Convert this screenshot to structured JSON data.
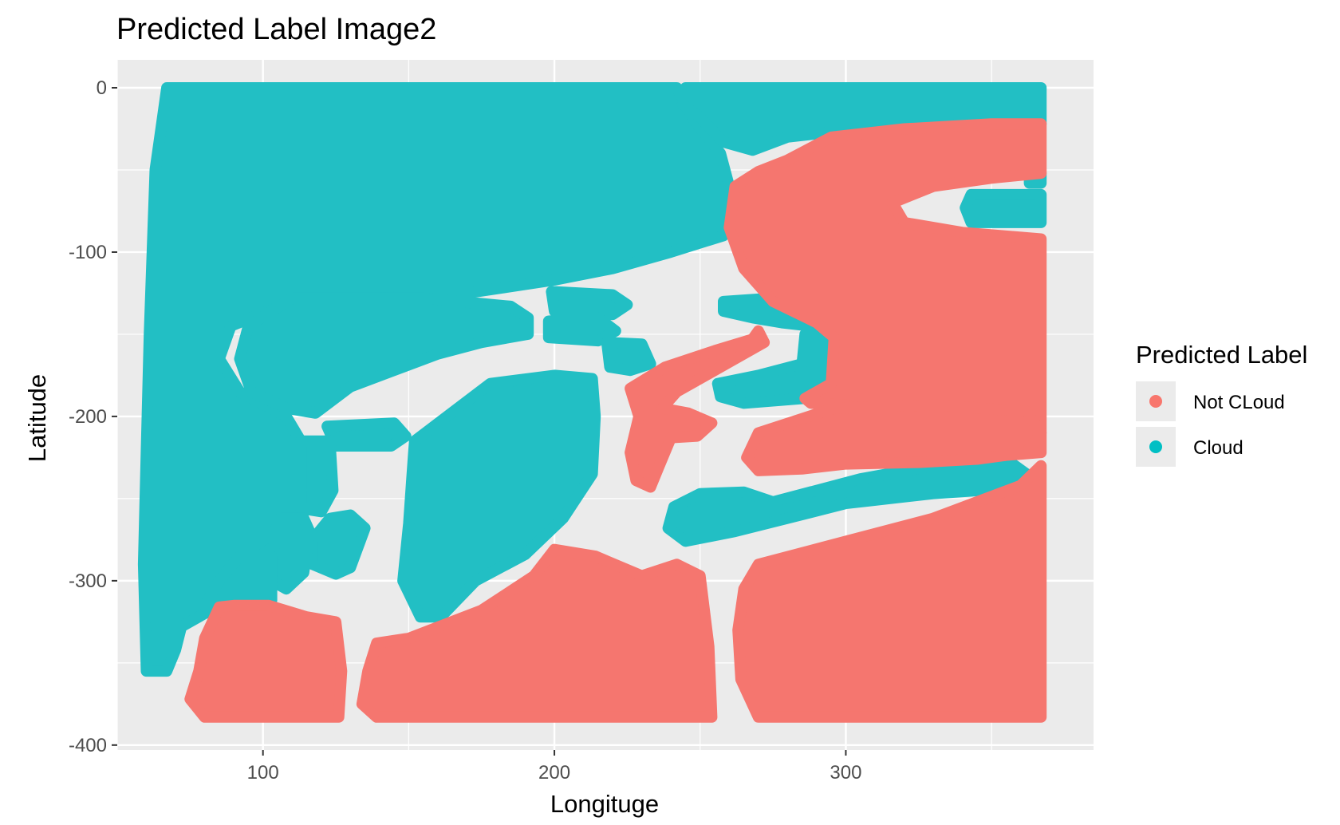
{
  "chart_data": {
    "type": "scatter",
    "title": "Predicted Label Image2",
    "xlabel": "Longituge",
    "ylabel": "Latitude",
    "xlim": [
      50,
      385
    ],
    "ylim": [
      -403,
      17
    ],
    "x_ticks": [
      100,
      200,
      300
    ],
    "y_ticks": [
      0,
      -100,
      -200,
      -300,
      -400
    ],
    "grid": true,
    "legend": {
      "title": "Predicted Label",
      "position": "right",
      "entries": [
        {
          "label": "Not CLoud",
          "color": "#F8766D"
        },
        {
          "label": "Cloud",
          "color": "#00BFC4"
        }
      ]
    },
    "series": [
      {
        "name": "Cloud",
        "color": "#22BFC4",
        "regions": [
          [
            [
              67,
              0
            ],
            [
              242,
              0
            ],
            [
              248,
              -20
            ],
            [
              257,
              -40
            ],
            [
              260,
              -60
            ],
            [
              260,
              -75
            ],
            [
              258,
              -90
            ],
            [
              240,
              -100
            ],
            [
              220,
              -110
            ],
            [
              200,
              -117
            ],
            [
              170,
              -125
            ],
            [
              140,
              -128
            ],
            [
              110,
              -130
            ],
            [
              89,
              -145
            ],
            [
              85,
              -165
            ],
            [
              92,
              -185
            ],
            [
              108,
              -200
            ],
            [
              113,
              -215
            ],
            [
              115,
              -240
            ],
            [
              113,
              -270
            ],
            [
              103,
              -280
            ],
            [
              93,
              -292
            ],
            [
              85,
              -308
            ],
            [
              82,
              -318
            ],
            [
              72,
              -328
            ],
            [
              70,
              -342
            ],
            [
              67,
              -355
            ],
            [
              60,
              -355
            ],
            [
              59,
              -290
            ],
            [
              60,
              -220
            ],
            [
              61,
              -150
            ],
            [
              63,
              -50
            ]
          ],
          [
            [
              110,
              -128
            ],
            [
              155,
              -128
            ],
            [
              185,
              -133
            ],
            [
              191,
              -140
            ],
            [
              191,
              -150
            ],
            [
              175,
              -155
            ],
            [
              160,
              -162
            ],
            [
              145,
              -172
            ],
            [
              130,
              -182
            ],
            [
              118,
              -198
            ],
            [
              108,
              -195
            ],
            [
              96,
              -185
            ],
            [
              92,
              -165
            ],
            [
              95,
              -145
            ]
          ],
          [
            [
              152,
              -215
            ],
            [
              178,
              -180
            ],
            [
              200,
              -175
            ],
            [
              213,
              -177
            ],
            [
              214,
              -200
            ],
            [
              213,
              -235
            ],
            [
              203,
              -262
            ],
            [
              190,
              -284
            ],
            [
              173,
              -300
            ],
            [
              161,
              -322
            ],
            [
              154,
              -322
            ],
            [
              148,
              -300
            ],
            [
              150,
              -265
            ],
            [
              151,
              -240
            ]
          ],
          [
            [
              199,
              -124
            ],
            [
              220,
              -126
            ],
            [
              225,
              -132
            ],
            [
              220,
              -138
            ],
            [
              200,
              -136
            ]
          ],
          [
            [
              198,
              -142
            ],
            [
              215,
              -140
            ],
            [
              221,
              -148
            ],
            [
              215,
              -154
            ],
            [
              198,
              -152
            ]
          ],
          [
            [
              218,
              -155
            ],
            [
              230,
              -156
            ],
            [
              233,
              -168
            ],
            [
              226,
              -172
            ],
            [
              219,
              -170
            ]
          ],
          [
            [
              258,
              -130
            ],
            [
              275,
              -128
            ],
            [
              292,
              -136
            ],
            [
              293,
              -146
            ],
            [
              278,
              -143
            ],
            [
              268,
              -140
            ],
            [
              258,
              -136
            ]
          ],
          [
            [
              286,
              -150
            ],
            [
              293,
              -153
            ],
            [
              296,
              -165
            ],
            [
              295,
              -182
            ],
            [
              286,
              -189
            ],
            [
              265,
              -192
            ],
            [
              257,
              -188
            ],
            [
              256,
              -180
            ],
            [
              270,
              -175
            ],
            [
              285,
              -168
            ]
          ],
          [
            [
              275,
              -252
            ],
            [
              305,
              -238
            ],
            [
              330,
              -230
            ],
            [
              355,
              -226
            ],
            [
              362,
              -235
            ],
            [
              355,
              -244
            ],
            [
              330,
              -247
            ],
            [
              300,
              -253
            ],
            [
              280,
              -262
            ],
            [
              262,
              -270
            ],
            [
              245,
              -276
            ],
            [
              239,
              -268
            ],
            [
              241,
              -255
            ],
            [
              250,
              -247
            ],
            [
              265,
              -246
            ]
          ],
          [
            [
              245,
              0
            ],
            [
              367,
              0
            ],
            [
              367,
              -22
            ],
            [
              340,
              -24
            ],
            [
              305,
              -25
            ],
            [
              280,
              -30
            ],
            [
              268,
              -38
            ],
            [
              258,
              -33
            ],
            [
              250,
              -18
            ],
            [
              244,
              -10
            ]
          ],
          [
            [
              122,
              -206
            ],
            [
              145,
              -204
            ],
            [
              149,
              -212
            ],
            [
              144,
              -218
            ],
            [
              125,
              -218
            ]
          ],
          [
            [
              113,
              -215
            ],
            [
              123,
              -215
            ],
            [
              124,
              -245
            ],
            [
              120,
              -258
            ],
            [
              113,
              -256
            ]
          ],
          [
            [
              123,
              -262
            ],
            [
              130,
              -260
            ],
            [
              135,
              -268
            ],
            [
              130,
              -292
            ],
            [
              125,
              -296
            ],
            [
              117,
              -290
            ],
            [
              117,
              -275
            ]
          ],
          [
            [
              106,
              -262
            ],
            [
              114,
              -262
            ],
            [
              116,
              -270
            ],
            [
              114,
              -295
            ],
            [
              108,
              -305
            ],
            [
              103,
              -300
            ],
            [
              104,
              -270
            ]
          ],
          [
            [
              92,
              -285
            ],
            [
              103,
              -285
            ],
            [
              103,
              -312
            ],
            [
              90,
              -318
            ],
            [
              84,
              -324
            ],
            [
              80,
              -315
            ],
            [
              85,
              -300
            ]
          ],
          [
            [
              343,
              -65
            ],
            [
              367,
              -65
            ],
            [
              367,
              -82
            ],
            [
              343,
              -82
            ],
            [
              341,
              -73
            ]
          ],
          [
            [
              363,
              -52
            ],
            [
              367,
              -52
            ],
            [
              367,
              -58
            ],
            [
              363,
              -58
            ]
          ]
        ]
      },
      {
        "name": "Not CLoud",
        "color": "#F5766F",
        "regions": [
          [
            [
              270,
              -51
            ],
            [
              280,
              -44
            ],
            [
              295,
              -30
            ],
            [
              320,
              -25
            ],
            [
              350,
              -22
            ],
            [
              367,
              -22
            ],
            [
              367,
              -52
            ],
            [
              350,
              -55
            ],
            [
              330,
              -60
            ],
            [
              316,
              -70
            ],
            [
              320,
              -82
            ],
            [
              340,
              -88
            ],
            [
              367,
              -92
            ],
            [
              367,
              -222
            ],
            [
              345,
              -225
            ],
            [
              320,
              -200
            ],
            [
              300,
              -193
            ],
            [
              288,
              -192
            ],
            [
              286,
              -189
            ],
            [
              295,
              -180
            ],
            [
              296,
              -152
            ],
            [
              290,
              -143
            ],
            [
              275,
              -130
            ],
            [
              265,
              -110
            ],
            [
              260,
              -85
            ],
            [
              262,
              -60
            ]
          ],
          [
            [
              296,
              -195
            ],
            [
              330,
              -193
            ],
            [
              362,
              -197
            ],
            [
              367,
              -210
            ],
            [
              362,
              -222
            ],
            [
              345,
              -226
            ],
            [
              325,
              -228
            ],
            [
              300,
              -229
            ],
            [
              285,
              -232
            ],
            [
              270,
              -233
            ],
            [
              266,
              -225
            ],
            [
              270,
              -210
            ]
          ],
          [
            [
              226,
              -183
            ],
            [
              238,
              -170
            ],
            [
              255,
              -160
            ],
            [
              268,
              -153
            ],
            [
              270,
              -148
            ],
            [
              272,
              -155
            ],
            [
              262,
              -165
            ],
            [
              252,
              -175
            ],
            [
              242,
              -185
            ],
            [
              237,
              -195
            ],
            [
              246,
              -198
            ],
            [
              254,
              -204
            ],
            [
              249,
              -212
            ],
            [
              240,
              -213
            ],
            [
              236,
              -230
            ],
            [
              233,
              -243
            ],
            [
              228,
              -239
            ],
            [
              226,
              -222
            ],
            [
              229,
              -200
            ]
          ],
          [
            [
              139,
              -338
            ],
            [
              150,
              -335
            ],
            [
              175,
              -318
            ],
            [
              193,
              -297
            ],
            [
              200,
              -281
            ],
            [
              214,
              -285
            ],
            [
              230,
              -297
            ],
            [
              242,
              -290
            ],
            [
              250,
              -297
            ],
            [
              253,
              -340
            ],
            [
              254,
              -383
            ],
            [
              139,
              -383
            ],
            [
              134,
              -375
            ],
            [
              136,
              -355
            ]
          ],
          [
            [
              270,
              -290
            ],
            [
              300,
              -276
            ],
            [
              330,
              -262
            ],
            [
              360,
              -242
            ],
            [
              367,
              -230
            ],
            [
              367,
              -383
            ],
            [
              270,
              -383
            ],
            [
              264,
              -360
            ],
            [
              263,
              -330
            ],
            [
              265,
              -305
            ]
          ],
          [
            [
              80,
              -335
            ],
            [
              85,
              -316
            ],
            [
              90,
              -315
            ],
            [
              102,
              -315
            ],
            [
              115,
              -322
            ],
            [
              125,
              -325
            ],
            [
              127,
              -355
            ],
            [
              126,
              -383
            ],
            [
              80,
              -383
            ],
            [
              75,
              -372
            ],
            [
              78,
              -355
            ]
          ]
        ]
      }
    ]
  }
}
